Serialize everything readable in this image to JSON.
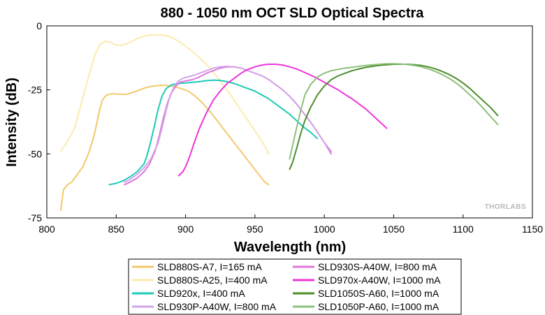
{
  "chart_data": {
    "type": "line",
    "title": "880 - 1050 nm OCT SLD Optical Spectra",
    "xlabel": "Wavelength (nm)",
    "ylabel": "Intensity (dB)",
    "xlim": [
      800,
      1150
    ],
    "ylim": [
      -75,
      0
    ],
    "xticks": [
      "800",
      "850",
      "900",
      "950",
      "1000",
      "1050",
      "1100",
      "1150"
    ],
    "yticks": [
      "0",
      "-25",
      "-50",
      "-75"
    ],
    "grid": false,
    "legend_position": "bottom",
    "watermark": "THORLABS",
    "series": [
      {
        "name": "SLD880S-A7, I=165 mA",
        "color": "#f2c96b",
        "x": [
          810,
          812,
          815,
          818,
          822,
          826,
          830,
          834,
          838,
          840,
          843,
          847,
          852,
          857,
          862,
          867,
          872,
          877,
          882,
          887,
          892,
          897,
          902,
          907,
          912,
          917,
          922,
          927,
          932,
          937,
          942,
          947,
          952,
          957,
          960
        ],
        "y": [
          -72,
          -64,
          -62,
          -61,
          -58,
          -55,
          -50,
          -43,
          -33,
          -29,
          -27,
          -26.5,
          -26.7,
          -26.8,
          -26,
          -25,
          -24,
          -23.5,
          -23.2,
          -23.3,
          -23.7,
          -24.5,
          -25.5,
          -27.5,
          -30,
          -33,
          -36.5,
          -40,
          -43.5,
          -47,
          -50.5,
          -54,
          -57.5,
          -61,
          -62
        ]
      },
      {
        "name": "SLD880S-A25, I=400 mA",
        "color": "#fcebae",
        "x": [
          810,
          815,
          820,
          825,
          830,
          835,
          838,
          842,
          846,
          850,
          855,
          860,
          865,
          870,
          875,
          880,
          885,
          890,
          895,
          900,
          905,
          910,
          915,
          920,
          925,
          930,
          935,
          940,
          945,
          950,
          955,
          960
        ],
        "y": [
          -49,
          -45,
          -40,
          -30,
          -20,
          -11,
          -7.5,
          -6,
          -6.5,
          -7.5,
          -7.5,
          -6.5,
          -5,
          -4,
          -3.6,
          -3.5,
          -3.7,
          -4.5,
          -6,
          -8,
          -10,
          -12.5,
          -15,
          -18,
          -21.5,
          -25,
          -29,
          -33,
          -37,
          -41,
          -45,
          -50
        ]
      },
      {
        "name": "SLD920x, I=400 mA",
        "color": "#1dc9b7",
        "x": [
          845,
          850,
          855,
          860,
          865,
          870,
          872,
          875,
          878,
          880,
          883,
          886,
          890,
          895,
          900,
          905,
          910,
          915,
          920,
          925,
          930,
          935,
          940,
          945,
          950,
          955,
          960,
          965,
          970,
          975,
          980,
          985,
          990,
          995
        ],
        "y": [
          -62,
          -61.5,
          -60.5,
          -59,
          -57,
          -54,
          -51,
          -45,
          -38,
          -33,
          -27.5,
          -24.5,
          -23,
          -22.5,
          -22.3,
          -22,
          -21.8,
          -21.4,
          -21.2,
          -21.3,
          -21.8,
          -22.5,
          -23.5,
          -24.5,
          -25.5,
          -27,
          -28.5,
          -30.5,
          -32.5,
          -34.5,
          -37,
          -39.5,
          -41.5,
          -44
        ]
      },
      {
        "name": "SLD930S-A40W, I=800 mA",
        "color": "#dd77dd",
        "x": [
          856,
          860,
          865,
          870,
          874,
          878,
          881,
          884,
          887,
          890,
          893,
          896,
          900,
          905,
          910,
          915,
          920,
          925,
          930,
          935,
          940,
          945,
          950,
          955,
          960,
          965,
          970,
          975,
          980,
          985,
          990,
          995,
          1000,
          1005
        ],
        "y": [
          -62,
          -61,
          -59.5,
          -57,
          -54,
          -49,
          -43,
          -36,
          -30,
          -26,
          -23.5,
          -22,
          -21.5,
          -21,
          -20,
          -18.5,
          -17.5,
          -16.5,
          -16,
          -16,
          -16.5,
          -17.5,
          -18.5,
          -19.5,
          -21,
          -23,
          -25,
          -27.5,
          -30.5,
          -34,
          -37.5,
          -41.5,
          -45.5,
          -50
        ]
      },
      {
        "name": "SLD930P-A40W, I=800 mA",
        "color": "#d2a4e8",
        "x": [
          856,
          860,
          865,
          870,
          875,
          880,
          883,
          886,
          889,
          892,
          895,
          898,
          901,
          905,
          910,
          915,
          920,
          925,
          930,
          935,
          940,
          945,
          950,
          955,
          960,
          965,
          970,
          975,
          980,
          985,
          990,
          995,
          1000,
          1005
        ],
        "y": [
          -61,
          -60,
          -58,
          -55.5,
          -52,
          -46,
          -40,
          -33,
          -27,
          -23.5,
          -21.5,
          -20.5,
          -20,
          -19.5,
          -18.5,
          -17.5,
          -16.5,
          -16,
          -15.8,
          -16,
          -16.5,
          -17.5,
          -18.5,
          -19.5,
          -21,
          -23,
          -25,
          -27.5,
          -30.5,
          -34,
          -37.5,
          -41.5,
          -45.5,
          -49
        ]
      },
      {
        "name": "SLD970x-A40W, I=1000 mA",
        "color": "#ec35d8",
        "x": [
          895,
          898,
          900,
          903,
          906,
          910,
          915,
          920,
          925,
          930,
          935,
          940,
          945,
          950,
          955,
          960,
          965,
          970,
          975,
          980,
          985,
          990,
          995,
          1000,
          1005,
          1010,
          1015,
          1020,
          1025,
          1030,
          1035,
          1040,
          1045
        ],
        "y": [
          -58.5,
          -57,
          -55,
          -51,
          -46,
          -40,
          -34,
          -29,
          -25.5,
          -22.5,
          -20.5,
          -18.5,
          -17,
          -16,
          -15.3,
          -15,
          -15,
          -15.3,
          -16,
          -16.8,
          -18,
          -19.2,
          -20.5,
          -22,
          -23.5,
          -25,
          -26.8,
          -28.5,
          -30.5,
          -32.5,
          -35,
          -37.5,
          -40
        ]
      },
      {
        "name": "SLD1050S-A60, I=1000 mA",
        "color": "#4e8c2c",
        "x": [
          975,
          977,
          980,
          983,
          986,
          990,
          995,
          1000,
          1005,
          1010,
          1015,
          1020,
          1025,
          1030,
          1035,
          1040,
          1045,
          1050,
          1055,
          1060,
          1065,
          1070,
          1075,
          1080,
          1085,
          1090,
          1095,
          1100,
          1105,
          1110,
          1115,
          1120,
          1125
        ],
        "y": [
          -56,
          -53.5,
          -48,
          -42,
          -37,
          -32,
          -27,
          -23.5,
          -21,
          -19.5,
          -18.5,
          -17.5,
          -16.8,
          -16.2,
          -15.8,
          -15.4,
          -15.2,
          -15,
          -15,
          -15,
          -15.2,
          -15.5,
          -16,
          -16.8,
          -17.8,
          -19,
          -20.5,
          -22.3,
          -24.5,
          -27,
          -29.5,
          -32,
          -35
        ]
      },
      {
        "name": "SLD1050P-A60, I=1000 mA",
        "color": "#8cc07a",
        "x": [
          975,
          977,
          980,
          983,
          986,
          990,
          995,
          1000,
          1005,
          1010,
          1015,
          1020,
          1025,
          1030,
          1035,
          1040,
          1045,
          1050,
          1055,
          1060,
          1065,
          1070,
          1075,
          1080,
          1085,
          1090,
          1095,
          1100,
          1105,
          1110,
          1115,
          1120,
          1125
        ],
        "y": [
          -52,
          -47,
          -40,
          -33,
          -27,
          -23,
          -20,
          -18.5,
          -17.5,
          -17,
          -16.5,
          -16.2,
          -15.8,
          -15.5,
          -15.2,
          -15,
          -14.8,
          -14.8,
          -14.9,
          -15.1,
          -15.5,
          -16,
          -16.8,
          -17.8,
          -19,
          -20.5,
          -22.3,
          -24.5,
          -27,
          -29.5,
          -32.5,
          -35.5,
          -38.5
        ]
      }
    ],
    "legend_order": [
      0,
      3,
      1,
      5,
      2,
      6,
      4,
      7
    ]
  }
}
